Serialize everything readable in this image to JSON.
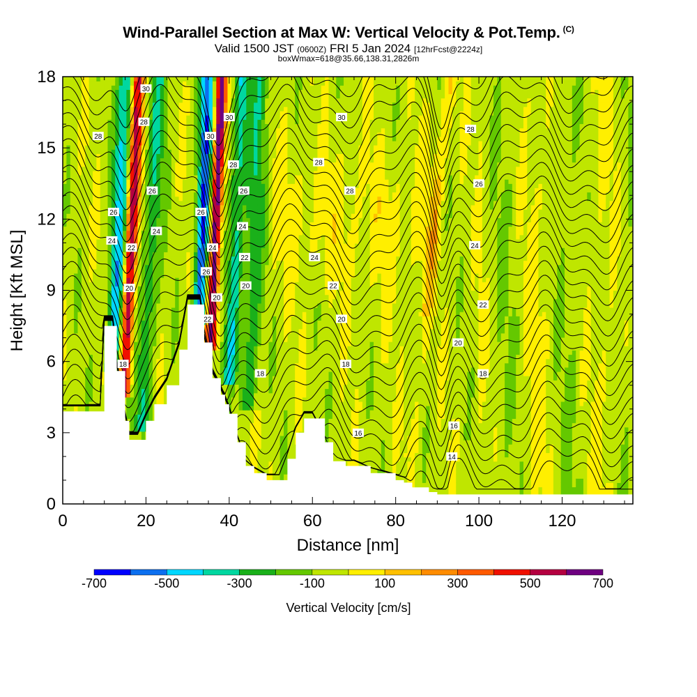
{
  "header": {
    "title": "Wind-Parallel Section at Max W: Vertical Velocity & Pot.Temp.",
    "copyright": "(C)",
    "valid_main": "Valid 1500 JST",
    "valid_utc": "(0600Z)",
    "valid_date": "FRI 5 Jan 2024",
    "forecast": "[12hrFcst@2224z]",
    "box_info": "boxWmax=618@35.66,138.31,2826m"
  },
  "chart_data": {
    "type": "heatmap",
    "xlabel": "Distance [nm]",
    "ylabel": "Height [Kft MSL]",
    "xlim": [
      0,
      137
    ],
    "ylim": [
      0,
      18
    ],
    "x_ticks": [
      0,
      20,
      40,
      60,
      80,
      100,
      120
    ],
    "y_ticks": [
      0,
      3,
      6,
      9,
      12,
      15,
      18
    ],
    "colorbar": {
      "label": "Vertical Velocity [cm/s]",
      "tick_labels": [
        "-700",
        "-500",
        "-300",
        "-100",
        "100",
        "300",
        "500",
        "700"
      ],
      "tick_values": [
        -700,
        -500,
        -300,
        -100,
        100,
        300,
        500,
        700
      ],
      "bins": [
        {
          "lo": -700,
          "hi": -600,
          "color": "#0000ff"
        },
        {
          "lo": -600,
          "hi": -500,
          "color": "#0c6fef"
        },
        {
          "lo": -500,
          "hi": -400,
          "color": "#00d7ff"
        },
        {
          "lo": -400,
          "hi": -300,
          "color": "#00d7a0"
        },
        {
          "lo": -300,
          "hi": -200,
          "color": "#1ab01a"
        },
        {
          "lo": -200,
          "hi": -100,
          "color": "#64c800"
        },
        {
          "lo": -100,
          "hi": 0,
          "color": "#bfe600"
        },
        {
          "lo": 0,
          "hi": 100,
          "color": "#ffef00"
        },
        {
          "lo": 100,
          "hi": 200,
          "color": "#ffc000"
        },
        {
          "lo": 200,
          "hi": 300,
          "color": "#ff8c00"
        },
        {
          "lo": 300,
          "hi": 400,
          "color": "#ff5a00"
        },
        {
          "lo": 400,
          "hi": 500,
          "color": "#f01000"
        },
        {
          "lo": 500,
          "hi": 600,
          "color": "#b40040"
        },
        {
          "lo": 600,
          "hi": 700,
          "color": "#6e0080"
        }
      ]
    },
    "terrain": [
      [
        0,
        3.9
      ],
      [
        9,
        3.9
      ],
      [
        10,
        7.5
      ],
      [
        12,
        7.5
      ],
      [
        13,
        5.6
      ],
      [
        15,
        3.5
      ],
      [
        16,
        2.7
      ],
      [
        18,
        2.7
      ],
      [
        20,
        3.5
      ],
      [
        22,
        4.2
      ],
      [
        25,
        5.0
      ],
      [
        28,
        6.5
      ],
      [
        30,
        8.4
      ],
      [
        33,
        8.4
      ],
      [
        34,
        6.8
      ],
      [
        36,
        5.3
      ],
      [
        38,
        4.6
      ],
      [
        39,
        4.2
      ],
      [
        40,
        3.8
      ],
      [
        42,
        2.6
      ],
      [
        44,
        1.6
      ],
      [
        46,
        1.3
      ],
      [
        49,
        1.0
      ],
      [
        52,
        1.0
      ],
      [
        54,
        1.9
      ],
      [
        56,
        3.0
      ],
      [
        58,
        3.6
      ],
      [
        60,
        3.6
      ],
      [
        63,
        2.6
      ],
      [
        65,
        1.8
      ],
      [
        68,
        1.6
      ],
      [
        70,
        1.6
      ],
      [
        74,
        1.3
      ],
      [
        80,
        1.0
      ],
      [
        82,
        0.9
      ],
      [
        84,
        0.7
      ],
      [
        88,
        0.5
      ],
      [
        90,
        0.4
      ],
      [
        137,
        0.4
      ]
    ],
    "theta_labels": [
      {
        "x": 8.5,
        "y": 15.5,
        "text": "28"
      },
      {
        "x": 20.0,
        "y": 17.5,
        "text": "30"
      },
      {
        "x": 19.5,
        "y": 16.1,
        "text": "28"
      },
      {
        "x": 21.5,
        "y": 13.2,
        "text": "26"
      },
      {
        "x": 22.5,
        "y": 11.5,
        "text": "24"
      },
      {
        "x": 12.2,
        "y": 12.3,
        "text": "26"
      },
      {
        "x": 11.8,
        "y": 11.1,
        "text": "24"
      },
      {
        "x": 16.5,
        "y": 10.8,
        "text": "22"
      },
      {
        "x": 16.0,
        "y": 9.1,
        "text": "20"
      },
      {
        "x": 14.5,
        "y": 5.9,
        "text": "18"
      },
      {
        "x": 40.0,
        "y": 16.3,
        "text": "30"
      },
      {
        "x": 35.5,
        "y": 15.5,
        "text": "30"
      },
      {
        "x": 41.0,
        "y": 14.3,
        "text": "28"
      },
      {
        "x": 43.5,
        "y": 13.2,
        "text": "26"
      },
      {
        "x": 33.2,
        "y": 12.3,
        "text": "26"
      },
      {
        "x": 43.2,
        "y": 11.7,
        "text": "24"
      },
      {
        "x": 36.0,
        "y": 10.8,
        "text": "24"
      },
      {
        "x": 43.7,
        "y": 10.4,
        "text": "22"
      },
      {
        "x": 34.5,
        "y": 9.8,
        "text": "26"
      },
      {
        "x": 44.0,
        "y": 9.2,
        "text": "20"
      },
      {
        "x": 37.0,
        "y": 8.7,
        "text": "20"
      },
      {
        "x": 34.8,
        "y": 7.8,
        "text": "22"
      },
      {
        "x": 47.5,
        "y": 5.5,
        "text": "18"
      },
      {
        "x": 67.0,
        "y": 16.3,
        "text": "30"
      },
      {
        "x": 61.5,
        "y": 14.4,
        "text": "28"
      },
      {
        "x": 69.0,
        "y": 13.2,
        "text": "28"
      },
      {
        "x": 60.5,
        "y": 10.4,
        "text": "24"
      },
      {
        "x": 65.0,
        "y": 9.2,
        "text": "22"
      },
      {
        "x": 67.0,
        "y": 7.8,
        "text": "20"
      },
      {
        "x": 68.0,
        "y": 5.9,
        "text": "18"
      },
      {
        "x": 71.0,
        "y": 3.0,
        "text": "16"
      },
      {
        "x": 98.0,
        "y": 15.8,
        "text": "28"
      },
      {
        "x": 100.0,
        "y": 13.5,
        "text": "26"
      },
      {
        "x": 99.0,
        "y": 10.9,
        "text": "24"
      },
      {
        "x": 101.0,
        "y": 8.4,
        "text": "22"
      },
      {
        "x": 95.0,
        "y": 6.8,
        "text": "20"
      },
      {
        "x": 101.0,
        "y": 5.5,
        "text": "18"
      },
      {
        "x": 94.0,
        "y": 3.3,
        "text": "16"
      },
      {
        "x": 93.5,
        "y": 2.0,
        "text": "14"
      }
    ]
  }
}
